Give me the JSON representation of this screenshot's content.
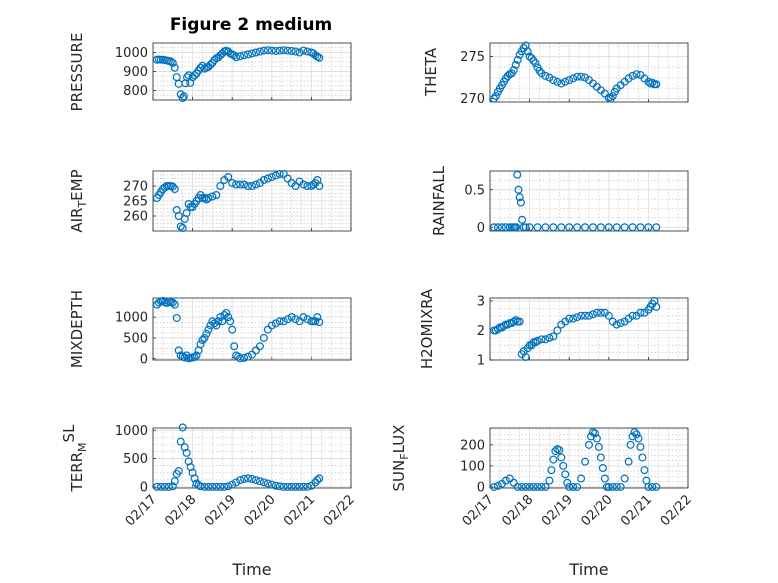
{
  "title": "Figure 2 medium",
  "marker_color": "#0072BD",
  "x_ticks": [
    "02/17",
    "02/18",
    "02/19",
    "02/20",
    "02/21",
    "02/22"
  ],
  "xlabel": "Time",
  "chart_data": [
    {
      "type": "scatter",
      "ylabel": "PRESSURE",
      "ylim": [
        750,
        1050
      ],
      "yticks": [
        800,
        900,
        1000
      ],
      "x": [
        0.1,
        0.15,
        0.2,
        0.25,
        0.3,
        0.35,
        0.4,
        0.45,
        0.5,
        0.55,
        0.6,
        0.65,
        0.7,
        0.75,
        0.78,
        0.82,
        0.86,
        0.9,
        0.94,
        1.0,
        1.05,
        1.1,
        1.15,
        1.2,
        1.25,
        1.3,
        1.35,
        1.4,
        1.45,
        1.5,
        1.55,
        1.6,
        1.65,
        1.7,
        1.75,
        1.8,
        1.85,
        1.9,
        1.95,
        2.0,
        2.05,
        2.1,
        2.2,
        2.3,
        2.4,
        2.5,
        2.6,
        2.7,
        2.8,
        2.9,
        3.0,
        3.1,
        3.2,
        3.3,
        3.4,
        3.5,
        3.6,
        3.7,
        3.8,
        3.9,
        4.0,
        4.05,
        4.1,
        4.15,
        4.2
      ],
      "y": [
        962,
        963,
        962,
        962,
        960,
        958,
        955,
        952,
        945,
        920,
        870,
        835,
        780,
        760,
        770,
        838,
        870,
        880,
        840,
        870,
        880,
        890,
        905,
        920,
        930,
        915,
        920,
        925,
        935,
        945,
        960,
        970,
        975,
        985,
        995,
        1005,
        1010,
        1005,
        995,
        990,
        985,
        975,
        980,
        985,
        990,
        995,
        1000,
        1005,
        1010,
        1012,
        1010,
        1008,
        1010,
        1012,
        1010,
        1008,
        1005,
        1000,
        1010,
        1005,
        1000,
        995,
        985,
        978,
        972
      ]
    },
    {
      "type": "scatter",
      "ylabel": "THETA",
      "ylim": [
        269.6,
        276.6
      ],
      "yticks": [
        270,
        275
      ],
      "x": [
        0.1,
        0.15,
        0.2,
        0.25,
        0.3,
        0.35,
        0.4,
        0.45,
        0.5,
        0.55,
        0.6,
        0.65,
        0.7,
        0.75,
        0.8,
        0.85,
        0.9,
        0.95,
        1.0,
        1.05,
        1.1,
        1.15,
        1.2,
        1.25,
        1.3,
        1.4,
        1.5,
        1.6,
        1.7,
        1.8,
        1.9,
        2.0,
        2.1,
        2.2,
        2.3,
        2.4,
        2.5,
        2.6,
        2.7,
        2.8,
        2.9,
        3.0,
        3.05,
        3.1,
        3.15,
        3.2,
        3.3,
        3.4,
        3.5,
        3.6,
        3.7,
        3.8,
        3.9,
        4.0,
        4.05,
        4.1,
        4.15,
        4.2
      ],
      "y": [
        270.0,
        270.3,
        270.8,
        271.2,
        271.6,
        272.0,
        272.4,
        272.7,
        272.9,
        273.0,
        273.4,
        274.0,
        274.6,
        275.2,
        275.6,
        276.0,
        276.3,
        275.6,
        275.0,
        274.8,
        274.5,
        274.2,
        273.7,
        273.3,
        273.0,
        272.7,
        272.5,
        272.2,
        272.0,
        271.8,
        272.0,
        272.2,
        272.4,
        272.6,
        272.6,
        272.5,
        272.2,
        271.8,
        271.4,
        271.0,
        270.6,
        270.1,
        270.0,
        270.3,
        270.8,
        271.2,
        271.6,
        272.0,
        272.4,
        272.7,
        272.9,
        272.8,
        272.4,
        272.0,
        271.8,
        271.9,
        271.7,
        271.7
      ]
    },
    {
      "type": "scatter",
      "ylabel": "AIR_TEMP",
      "ylim": [
        255,
        275
      ],
      "yticks": [
        260,
        265,
        270
      ],
      "x": [
        0.1,
        0.15,
        0.2,
        0.25,
        0.3,
        0.35,
        0.4,
        0.45,
        0.5,
        0.55,
        0.6,
        0.65,
        0.7,
        0.75,
        0.8,
        0.85,
        0.9,
        0.95,
        1.0,
        1.05,
        1.1,
        1.15,
        1.2,
        1.25,
        1.3,
        1.35,
        1.4,
        1.5,
        1.6,
        1.7,
        1.8,
        1.9,
        2.0,
        2.1,
        2.2,
        2.3,
        2.4,
        2.5,
        2.6,
        2.7,
        2.8,
        2.9,
        3.0,
        3.1,
        3.2,
        3.3,
        3.4,
        3.5,
        3.6,
        3.7,
        3.8,
        3.9,
        4.0,
        4.05,
        4.1,
        4.15,
        4.2
      ],
      "y": [
        266,
        267,
        268,
        269,
        269.5,
        270,
        270,
        270,
        269.8,
        269,
        262,
        260,
        256.5,
        256,
        259,
        261,
        264,
        263,
        263,
        264,
        265,
        266,
        267,
        266,
        266,
        265.5,
        266,
        266.5,
        267,
        270,
        272,
        273,
        271,
        270.5,
        270.5,
        270.5,
        270,
        270,
        270.5,
        271,
        272,
        272.5,
        273,
        273.5,
        274,
        274,
        272.5,
        271,
        270,
        271.5,
        270.5,
        270,
        270,
        270.5,
        271,
        272,
        270
      ]
    },
    {
      "type": "scatter",
      "ylabel": "RAINFALL",
      "ylim": [
        -0.05,
        0.75
      ],
      "yticks": [
        0,
        0.5
      ],
      "x": [
        0.1,
        0.2,
        0.3,
        0.4,
        0.5,
        0.55,
        0.6,
        0.63,
        0.66,
        0.69,
        0.72,
        0.75,
        0.78,
        0.81,
        0.85,
        0.9,
        1.0,
        1.2,
        1.4,
        1.6,
        1.8,
        2.0,
        2.2,
        2.4,
        2.6,
        2.8,
        3.0,
        3.2,
        3.4,
        3.6,
        3.8,
        4.0,
        4.2
      ],
      "y": [
        0,
        0,
        0,
        0,
        0,
        0,
        0,
        0,
        0,
        0.7,
        0.5,
        0.4,
        0.33,
        0.1,
        0,
        0,
        0,
        0,
        0,
        0,
        0,
        0,
        0,
        0,
        0,
        0,
        0,
        0,
        0,
        0,
        0,
        0,
        0
      ]
    },
    {
      "type": "scatter",
      "ylabel": "MIXDEPTH",
      "ylim": [
        -30,
        1460
      ],
      "yticks": [
        0,
        500,
        1000
      ],
      "x": [
        0.1,
        0.15,
        0.2,
        0.25,
        0.3,
        0.35,
        0.4,
        0.45,
        0.5,
        0.55,
        0.6,
        0.65,
        0.7,
        0.75,
        0.8,
        0.85,
        0.9,
        0.95,
        1.0,
        1.05,
        1.1,
        1.15,
        1.2,
        1.25,
        1.3,
        1.35,
        1.4,
        1.45,
        1.5,
        1.55,
        1.6,
        1.65,
        1.7,
        1.75,
        1.8,
        1.85,
        1.9,
        1.95,
        2.0,
        2.05,
        2.1,
        2.15,
        2.2,
        2.3,
        2.4,
        2.5,
        2.6,
        2.7,
        2.8,
        2.9,
        3.0,
        3.1,
        3.2,
        3.3,
        3.4,
        3.5,
        3.6,
        3.7,
        3.8,
        3.9,
        4.0,
        4.05,
        4.1,
        4.15,
        4.2
      ],
      "y": [
        1300,
        1350,
        1380,
        1390,
        1360,
        1340,
        1380,
        1360,
        1350,
        1300,
        980,
        200,
        80,
        50,
        30,
        80,
        10,
        20,
        30,
        40,
        80,
        200,
        350,
        450,
        500,
        600,
        700,
        800,
        900,
        850,
        800,
        900,
        1000,
        900,
        1050,
        1100,
        1000,
        900,
        700,
        300,
        80,
        50,
        10,
        20,
        50,
        100,
        200,
        300,
        500,
        700,
        800,
        850,
        900,
        900,
        950,
        1000,
        950,
        900,
        1000,
        950,
        900,
        900,
        900,
        1000,
        880
      ]
    },
    {
      "type": "scatter",
      "ylabel": "H2OMIXRA",
      "ylim": [
        1,
        3.1
      ],
      "yticks": [
        1,
        2,
        3
      ],
      "x": [
        0.1,
        0.15,
        0.2,
        0.25,
        0.3,
        0.35,
        0.4,
        0.45,
        0.5,
        0.55,
        0.6,
        0.65,
        0.7,
        0.75,
        0.8,
        0.85,
        0.9,
        0.95,
        1.0,
        1.05,
        1.1,
        1.15,
        1.2,
        1.3,
        1.4,
        1.5,
        1.6,
        1.7,
        1.8,
        1.9,
        2.0,
        2.1,
        2.2,
        2.3,
        2.4,
        2.5,
        2.6,
        2.7,
        2.8,
        2.9,
        3.0,
        3.1,
        3.2,
        3.3,
        3.4,
        3.5,
        3.6,
        3.7,
        3.8,
        3.9,
        4.0,
        4.05,
        4.1,
        4.15,
        4.2
      ],
      "y": [
        2.0,
        2.0,
        2.05,
        2.1,
        2.1,
        2.15,
        2.2,
        2.2,
        2.25,
        2.25,
        2.3,
        2.35,
        2.3,
        2.3,
        1.2,
        1.3,
        1.1,
        1.4,
        1.5,
        1.5,
        1.6,
        1.6,
        1.65,
        1.7,
        1.7,
        1.75,
        1.8,
        2.0,
        2.2,
        2.3,
        2.4,
        2.4,
        2.45,
        2.5,
        2.5,
        2.5,
        2.55,
        2.6,
        2.6,
        2.6,
        2.5,
        2.3,
        2.2,
        2.25,
        2.3,
        2.4,
        2.5,
        2.5,
        2.6,
        2.6,
        2.7,
        2.8,
        2.9,
        3.0,
        2.8
      ]
    },
    {
      "type": "scatter",
      "ylabel": "TERR_MSL",
      "ylim": [
        -20,
        1040
      ],
      "yticks": [
        0,
        500,
        1000
      ],
      "x": [
        0.1,
        0.2,
        0.3,
        0.4,
        0.5,
        0.55,
        0.6,
        0.65,
        0.7,
        0.75,
        0.8,
        0.85,
        0.9,
        0.95,
        1.0,
        1.05,
        1.1,
        1.15,
        1.2,
        1.3,
        1.4,
        1.5,
        1.6,
        1.7,
        1.8,
        1.9,
        2.0,
        2.1,
        2.2,
        2.3,
        2.4,
        2.5,
        2.6,
        2.7,
        2.8,
        2.9,
        3.0,
        3.1,
        3.2,
        3.3,
        3.4,
        3.5,
        3.6,
        3.7,
        3.8,
        3.9,
        4.0,
        4.1,
        4.15,
        4.2
      ],
      "y": [
        0,
        0,
        0,
        0,
        10,
        100,
        230,
        280,
        800,
        1050,
        700,
        600,
        450,
        350,
        250,
        150,
        60,
        30,
        10,
        0,
        0,
        0,
        0,
        0,
        0,
        10,
        40,
        80,
        120,
        140,
        150,
        140,
        120,
        100,
        80,
        60,
        40,
        20,
        10,
        0,
        0,
        0,
        0,
        0,
        0,
        0,
        20,
        80,
        120,
        150
      ]
    },
    {
      "type": "scatter",
      "ylabel": "SUN_FLUX",
      "ylim": [
        -5,
        280
      ],
      "yticks": [
        0,
        100,
        200
      ],
      "x": [
        0.1,
        0.2,
        0.3,
        0.4,
        0.5,
        0.6,
        0.7,
        0.8,
        0.9,
        1.0,
        1.1,
        1.2,
        1.3,
        1.4,
        1.5,
        1.55,
        1.6,
        1.65,
        1.7,
        1.75,
        1.8,
        1.85,
        1.9,
        1.95,
        2.0,
        2.1,
        2.2,
        2.3,
        2.4,
        2.5,
        2.55,
        2.6,
        2.65,
        2.7,
        2.75,
        2.8,
        2.85,
        2.9,
        2.95,
        3.0,
        3.1,
        3.2,
        3.3,
        3.4,
        3.5,
        3.55,
        3.6,
        3.65,
        3.7,
        3.75,
        3.8,
        3.85,
        3.9,
        3.95,
        4.0,
        4.1,
        4.2
      ],
      "y": [
        0,
        5,
        15,
        30,
        40,
        20,
        0,
        0,
        0,
        0,
        0,
        0,
        0,
        0,
        30,
        80,
        130,
        170,
        180,
        175,
        140,
        100,
        60,
        20,
        0,
        0,
        0,
        40,
        120,
        200,
        240,
        260,
        255,
        230,
        190,
        140,
        90,
        40,
        0,
        0,
        0,
        0,
        0,
        40,
        120,
        200,
        240,
        260,
        250,
        230,
        190,
        140,
        80,
        30,
        0,
        0,
        0
      ]
    }
  ]
}
